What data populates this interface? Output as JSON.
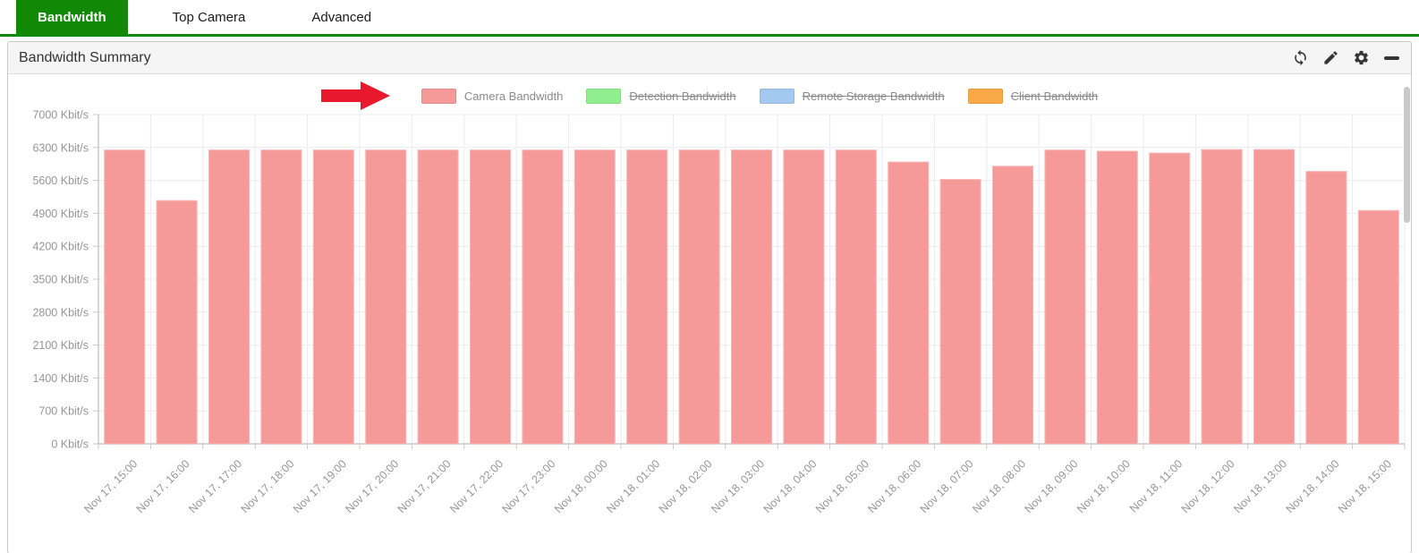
{
  "tabs": [
    {
      "label": "Bandwidth",
      "active": true
    },
    {
      "label": "Top Camera",
      "active": false
    },
    {
      "label": "Advanced",
      "active": false
    }
  ],
  "panel": {
    "title": "Bandwidth Summary",
    "icons": [
      "refresh",
      "edit",
      "settings",
      "collapse"
    ]
  },
  "legend": {
    "items": [
      {
        "label": "Camera Bandwidth",
        "color": "#f69999",
        "struck": false
      },
      {
        "label": "Detection Bandwidth",
        "color": "#90ee90",
        "struck": true
      },
      {
        "label": "Remote Storage Bandwidth",
        "color": "#a3c9f0",
        "struck": true
      },
      {
        "label": "Client Bandwidth",
        "color": "#f9a948",
        "struck": true
      }
    ]
  },
  "colors": {
    "accent_green": "#128807",
    "arrow_red": "#e8192c",
    "bar_fill": "#f69999",
    "axis_line": "#c9c9c9",
    "grid_line": "#ebebeb",
    "tick_label": "#969696"
  },
  "chart_data": {
    "type": "bar",
    "title": "Bandwidth Summary",
    "xlabel": "",
    "ylabel": "",
    "unit": "Kbit/s",
    "ylabel_suffix": " Kbit/s",
    "ylim": [
      0,
      7000
    ],
    "ytick_step": 700,
    "grid": true,
    "legend_position": "top",
    "categories": [
      "Nov 17, 15:00",
      "Nov 17, 16:00",
      "Nov 17, 17:00",
      "Nov 17, 18:00",
      "Nov 17, 19:00",
      "Nov 17, 20:00",
      "Nov 17, 21:00",
      "Nov 17, 22:00",
      "Nov 17, 23:00",
      "Nov 18, 00:00",
      "Nov 18, 01:00",
      "Nov 18, 02:00",
      "Nov 18, 03:00",
      "Nov 18, 04:00",
      "Nov 18, 05:00",
      "Nov 18, 06:00",
      "Nov 18, 07:00",
      "Nov 18, 08:00",
      "Nov 18, 09:00",
      "Nov 18, 10:00",
      "Nov 18, 11:00",
      "Nov 18, 12:00",
      "Nov 18, 13:00",
      "Nov 18, 14:00",
      "Nov 18, 15:00"
    ],
    "series": [
      {
        "name": "Camera Bandwidth",
        "color": "#f69999",
        "visible": true,
        "values": [
          6245,
          5170,
          6245,
          6245,
          6245,
          6245,
          6245,
          6245,
          6245,
          6245,
          6245,
          6245,
          6245,
          6245,
          6245,
          5990,
          5620,
          5900,
          6245,
          6220,
          6180,
          6255,
          6255,
          5790,
          4960
        ]
      },
      {
        "name": "Detection Bandwidth",
        "color": "#90ee90",
        "visible": false,
        "values": []
      },
      {
        "name": "Remote Storage Bandwidth",
        "color": "#a3c9f0",
        "visible": false,
        "values": []
      },
      {
        "name": "Client Bandwidth",
        "color": "#f9a948",
        "visible": false,
        "values": []
      }
    ]
  }
}
